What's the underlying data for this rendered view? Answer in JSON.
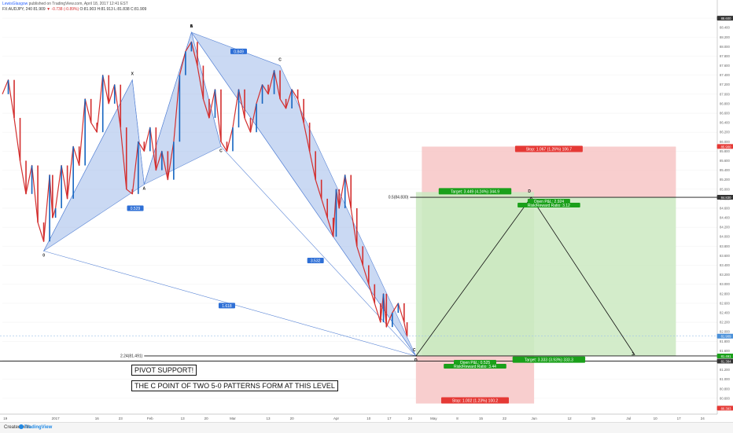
{
  "header": {
    "user": "LewisGlasgow",
    "published_text": "published on TradingView.com, April 18, 2017 12:41 EST",
    "symbol_line": "FX:AUDJPY, 240  81.909",
    "change": "▼ -0.738 (-0.89%)",
    "ohlc": "O:81.903 H:81.913 L:81.838 C:81.909"
  },
  "footer": {
    "created_with": "Created with",
    "brand": "TradingView"
  },
  "notes": {
    "pivot": "PIVOT SUPPORT!",
    "c_point": "THE C POINT OF TWO 5-0 PATTERNS FORM AT THIS LEVEL"
  },
  "colors": {
    "pattern_fill": "#9fb9ea",
    "target_zone": "#cbe9c1",
    "stop_zone": "#f7c6c6",
    "target_label": "#1aa01a",
    "stop_label": "#e53935",
    "candle_up": "#1565c0",
    "candle_down": "#d32f2f",
    "price_badge_black": "#111111"
  },
  "chart_data": {
    "type": "candlestick",
    "symbol": "FX:AUDJPY",
    "timeframe": "240",
    "ylim": [
      90.0,
      88.6
    ],
    "y_ticks": [
      {
        "v": 88.6,
        "l": "88.600"
      },
      {
        "v": 88.4,
        "l": "88.400"
      },
      {
        "v": 88.2,
        "l": "88.200"
      },
      {
        "v": 88.0,
        "l": "88.000"
      },
      {
        "v": 87.8,
        "l": "87.800"
      },
      {
        "v": 87.6,
        "l": "87.600"
      },
      {
        "v": 87.4,
        "l": "87.400"
      },
      {
        "v": 87.2,
        "l": "87.200"
      },
      {
        "v": 87.0,
        "l": "87.000"
      },
      {
        "v": 86.8,
        "l": "86.800"
      },
      {
        "v": 86.6,
        "l": "86.600"
      },
      {
        "v": 86.4,
        "l": "86.400"
      },
      {
        "v": 86.2,
        "l": "86.200"
      },
      {
        "v": 86.0,
        "l": "86.000"
      },
      {
        "v": 85.8,
        "l": "85.800"
      },
      {
        "v": 85.6,
        "l": "85.600"
      },
      {
        "v": 85.4,
        "l": "85.400"
      },
      {
        "v": 85.2,
        "l": "85.200"
      },
      {
        "v": 85.0,
        "l": "85.000"
      },
      {
        "v": 84.8,
        "l": "84.800"
      },
      {
        "v": 84.6,
        "l": "84.600"
      },
      {
        "v": 84.4,
        "l": "84.400"
      },
      {
        "v": 84.2,
        "l": "84.200"
      },
      {
        "v": 84.0,
        "l": "84.000"
      },
      {
        "v": 83.8,
        "l": "83.800"
      },
      {
        "v": 83.6,
        "l": "83.600"
      },
      {
        "v": 83.4,
        "l": "83.400"
      },
      {
        "v": 83.2,
        "l": "83.200"
      },
      {
        "v": 83.0,
        "l": "83.000"
      },
      {
        "v": 82.8,
        "l": "82.800"
      },
      {
        "v": 82.6,
        "l": "82.600"
      },
      {
        "v": 82.4,
        "l": "82.400"
      },
      {
        "v": 82.2,
        "l": "82.200"
      },
      {
        "v": 82.0,
        "l": "82.000"
      },
      {
        "v": 81.8,
        "l": "81.800"
      },
      {
        "v": 81.6,
        "l": "81.600"
      },
      {
        "v": 81.4,
        "l": "81.400"
      },
      {
        "v": 81.2,
        "l": "81.200"
      },
      {
        "v": 81.0,
        "l": "81.000"
      },
      {
        "v": 80.8,
        "l": "80.800"
      },
      {
        "v": 80.6,
        "l": "80.600"
      },
      {
        "v": 80.4,
        "l": "80.400"
      }
    ],
    "x_ticks": [
      {
        "t": 0.5,
        "l": "19"
      },
      {
        "t": 9,
        "l": "2017"
      },
      {
        "t": 16,
        "l": "16"
      },
      {
        "t": 20,
        "l": "23"
      },
      {
        "t": 25,
        "l": "Feb"
      },
      {
        "t": 30.5,
        "l": "13"
      },
      {
        "t": 34.5,
        "l": "20"
      },
      {
        "t": 39,
        "l": "Mar"
      },
      {
        "t": 45,
        "l": "13"
      },
      {
        "t": 49,
        "l": "20"
      },
      {
        "t": 56.5,
        "l": "Apr"
      },
      {
        "t": 62,
        "l": "10"
      },
      {
        "t": 65.5,
        "l": "17"
      },
      {
        "t": 69,
        "l": "24"
      },
      {
        "t": 73,
        "l": "May"
      },
      {
        "t": 77,
        "l": "8"
      },
      {
        "t": 81,
        "l": "15"
      },
      {
        "t": 85,
        "l": "22"
      },
      {
        "t": 90,
        "l": "Jun"
      },
      {
        "t": 96,
        "l": "12"
      },
      {
        "t": 100,
        "l": "19"
      },
      {
        "t": 106,
        "l": "Jul"
      },
      {
        "t": 110.5,
        "l": "10"
      },
      {
        "t": 114.5,
        "l": "17"
      },
      {
        "t": 118.5,
        "l": "24"
      }
    ],
    "xlim": [
      0,
      121
    ],
    "candles_path": [
      [
        0,
        87.0
      ],
      [
        1,
        87.3
      ],
      [
        2,
        86.5
      ],
      [
        3,
        85.6
      ],
      [
        4,
        84.9
      ],
      [
        5,
        85.5
      ],
      [
        6,
        84.3
      ],
      [
        7,
        83.9
      ],
      [
        8,
        85.3
      ],
      [
        8.5,
        84.4
      ],
      [
        9,
        84.6
      ],
      [
        10,
        85.5
      ],
      [
        11,
        84.8
      ],
      [
        12,
        85.9
      ],
      [
        13,
        85.5
      ],
      [
        14,
        86.9
      ],
      [
        15,
        86.4
      ],
      [
        16,
        86.2
      ],
      [
        17,
        87.4
      ],
      [
        18,
        86.8
      ],
      [
        19,
        87.2
      ],
      [
        20,
        86.3
      ],
      [
        21,
        85.0
      ],
      [
        22,
        84.9
      ],
      [
        23,
        86.0
      ],
      [
        24,
        85.8
      ],
      [
        25,
        86.3
      ],
      [
        26,
        85.4
      ],
      [
        27,
        85.8
      ],
      [
        28,
        85.2
      ],
      [
        29,
        86.0
      ],
      [
        30,
        87.4
      ],
      [
        31,
        87.9
      ],
      [
        32,
        88.1
      ],
      [
        33,
        87.6
      ],
      [
        34,
        86.9
      ],
      [
        35,
        86.5
      ],
      [
        36,
        87.1
      ],
      [
        37,
        86.0
      ],
      [
        38,
        85.8
      ],
      [
        39,
        86.3
      ],
      [
        40,
        87.1
      ],
      [
        41,
        86.5
      ],
      [
        42,
        86.2
      ],
      [
        43,
        86.8
      ],
      [
        44,
        87.2
      ],
      [
        45,
        87.0
      ],
      [
        46,
        87.5
      ],
      [
        47,
        86.9
      ],
      [
        48,
        86.7
      ],
      [
        49,
        87.1
      ],
      [
        50,
        86.9
      ],
      [
        51,
        86.4
      ],
      [
        52,
        85.8
      ],
      [
        53,
        85.2
      ],
      [
        54,
        84.8
      ],
      [
        55,
        84.4
      ],
      [
        56,
        84.0
      ],
      [
        56.5,
        85.0
      ],
      [
        57,
        84.6
      ],
      [
        58,
        85.3
      ],
      [
        59,
        84.6
      ],
      [
        60,
        83.8
      ],
      [
        61,
        83.4
      ],
      [
        62,
        83.0
      ],
      [
        63,
        82.6
      ],
      [
        64,
        82.2
      ],
      [
        64.5,
        82.8
      ],
      [
        65,
        82.1
      ],
      [
        66,
        82.4
      ],
      [
        67,
        82.6
      ],
      [
        68,
        82.2
      ],
      [
        68.5,
        81.9
      ]
    ],
    "harmonic_patterns": [
      {
        "points": [
          {
            "label": "0",
            "t": 7,
            "v": 83.7
          },
          {
            "label": "X",
            "t": 22,
            "v": 87.3
          },
          {
            "label": "A",
            "t": 24,
            "v": 85.1
          },
          {
            "label": "B",
            "t": 32,
            "v": 88.3
          },
          {
            "label": "C",
            "t": 37,
            "v": 85.9
          },
          {
            "label": "D",
            "t": 70,
            "v": 81.49
          }
        ],
        "ratios": [
          {
            "label": "0.529",
            "t": 22.5,
            "v": 84.6
          },
          {
            "label": "3.532",
            "t": 53,
            "v": 83.5
          },
          {
            "label": "1.618",
            "t": 38,
            "v": 82.55
          }
        ]
      },
      {
        "points": [
          {
            "label": "A",
            "t": 32,
            "v": 88.3
          },
          {
            "label": "C",
            "t": 47,
            "v": 87.6
          },
          {
            "label": "D",
            "t": 70,
            "v": 81.49
          }
        ],
        "ratios": [
          {
            "label": "0.849",
            "t": 40,
            "v": 87.9
          }
        ]
      }
    ],
    "levels": [
      {
        "label": "0.5(84.830)",
        "value": 84.83
      },
      {
        "label": "2.24(81.491)",
        "value": 81.491
      }
    ],
    "positions": [
      {
        "entry": 84.83,
        "target": 81.497,
        "stop": 85.897,
        "t_start": 71,
        "t_end": 114,
        "target_label": "Target: 3.333 (3.93%) 333.3",
        "stop_label": "Stop: 1.067 (1.26%) 106.7",
        "pnl_label": "Open P&L: 2.924",
        "rr_label": "Risk/Reward Ratio: 3.12"
      },
      {
        "entry": 81.491,
        "target": 84.94,
        "stop": 80.49,
        "t_start": 70,
        "t_end": 90,
        "target_label": "Target: 3.449 (4.24%) 344.9",
        "stop_label": "Stop: 1.002 (1.23%) 100.2",
        "pnl_label": "Open P&L: 0.525",
        "rr_label": "Risk/Reward Ratio: 3.44"
      }
    ],
    "projection_path": [
      {
        "label": "C",
        "t": 70,
        "v": 81.49
      },
      {
        "label": "D",
        "t": 89.5,
        "v": 84.83
      },
      {
        "label": "",
        "t": 107,
        "v": 81.52
      }
    ],
    "price_badges": [
      {
        "label": "88.600",
        "value": 88.6
      },
      {
        "label": "85.900",
        "value": 85.9
      },
      {
        "label": "84.830",
        "value": 84.83
      },
      {
        "label": "81.909",
        "value": 81.909
      },
      {
        "label": "81.491",
        "value": 81.491
      },
      {
        "label": "81.384",
        "value": 81.384
      },
      {
        "label": "80.393",
        "value": 80.393
      }
    ]
  }
}
